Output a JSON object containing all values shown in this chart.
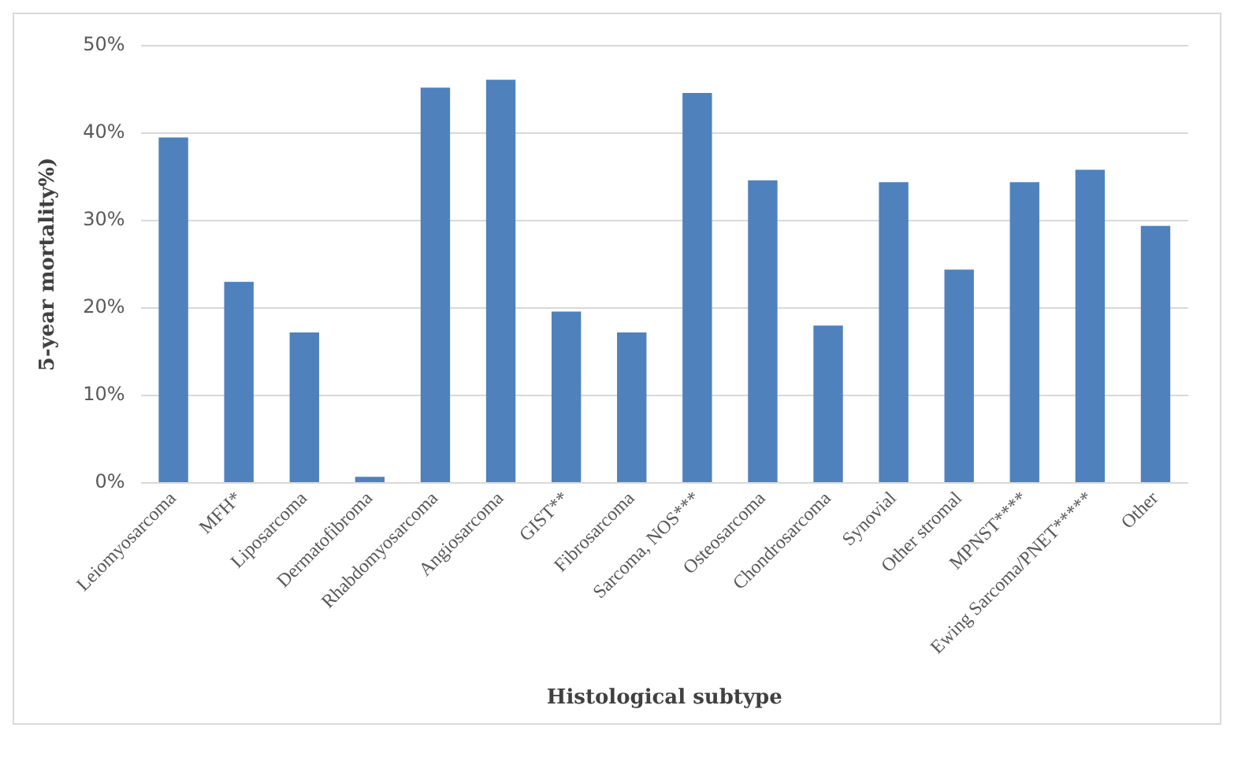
{
  "chart_data": {
    "type": "bar",
    "xlabel": "Histological subtype",
    "ylabel": "5-year mortality%)",
    "categories": [
      "Leiomyosarcoma",
      "MFH*",
      "Liposarcoma",
      "Dermatofibroma",
      "Rhabdomyosarcoma",
      "Angiosarcoma",
      "GIST**",
      "Fibrosarcoma",
      "Sarcoma, NOS***",
      "Osteosarcoma",
      "Chondrosarcoma",
      "Synovial",
      "Other stromal",
      "MPNST****",
      "Ewing Sarcoma/PNET*****",
      "Other"
    ],
    "values": [
      39.5,
      23.0,
      17.2,
      0.7,
      45.2,
      46.1,
      19.6,
      17.2,
      44.6,
      34.6,
      18.0,
      34.4,
      24.4,
      34.4,
      35.8,
      29.4
    ],
    "color": "#4f81bd",
    "ylim": [
      0,
      50
    ],
    "yticks": [
      {
        "value": 0,
        "label": "0%"
      },
      {
        "value": 10,
        "label": "10%"
      },
      {
        "value": 20,
        "label": "20%"
      },
      {
        "value": 30,
        "label": "30%"
      },
      {
        "value": 40,
        "label": "40%"
      },
      {
        "value": 50,
        "label": "50%"
      }
    ],
    "grid": "y",
    "legend": false
  }
}
